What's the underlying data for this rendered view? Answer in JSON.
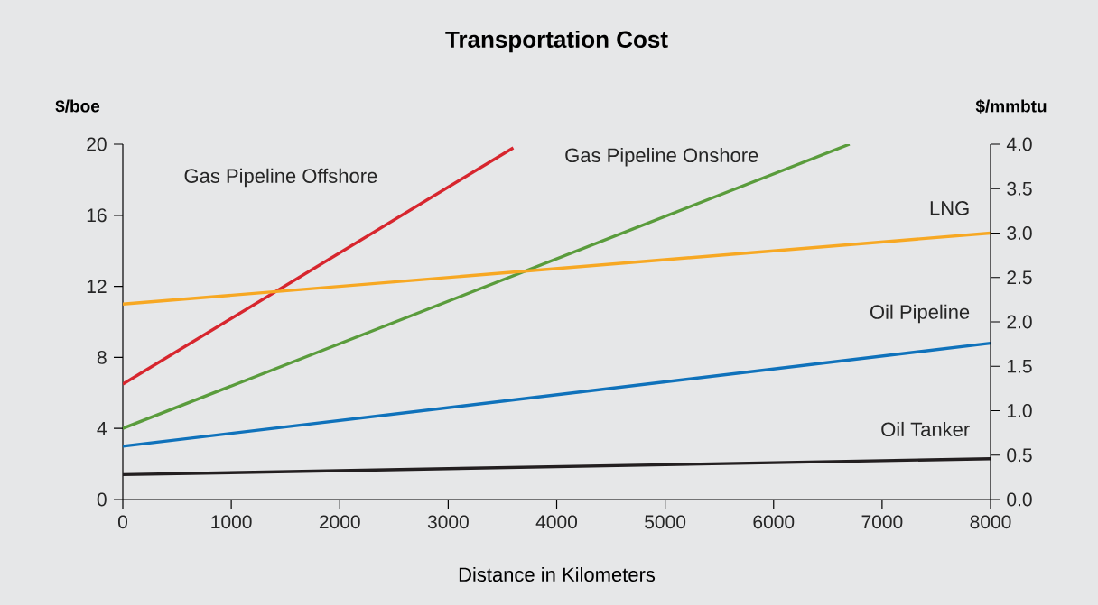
{
  "chart_data": {
    "type": "line",
    "title": "Transportation Cost",
    "xlabel": "Distance in Kilometers",
    "ylabel": "$/boe",
    "y2label": "$/mmbtu",
    "xlim": [
      0,
      8000
    ],
    "xticks": [
      0,
      1000,
      2000,
      3000,
      4000,
      5000,
      6000,
      7000,
      8000
    ],
    "ylim": [
      0,
      20
    ],
    "yticks": [
      0,
      4,
      8,
      12,
      16,
      20
    ],
    "y2lim": [
      0,
      4
    ],
    "y2ticks": [
      {
        "value": 0,
        "label": "0.0"
      },
      {
        "value": 0.5,
        "label": "0.5"
      },
      {
        "value": 1,
        "label": "1.0"
      },
      {
        "value": 1.5,
        "label": "1.5"
      },
      {
        "value": 2,
        "label": "2.0"
      },
      {
        "value": 2.5,
        "label": "2.5"
      },
      {
        "value": 3,
        "label": "3.0"
      },
      {
        "value": 3.5,
        "label": "3.5"
      },
      {
        "value": 4,
        "label": "4.0"
      }
    ],
    "marker": "none",
    "legend": false,
    "series": [
      {
        "name": "Gas Pipeline Offshore",
        "color": "#d7262e",
        "x": [
          0,
          3600
        ],
        "values": [
          6.5,
          19.8
        ]
      },
      {
        "name": "Gas Pipeline Onshore",
        "color": "#5a9c3c",
        "x": [
          0,
          6700
        ],
        "values": [
          4.0,
          20.0
        ]
      },
      {
        "name": "LNG",
        "color": "#f7a823",
        "x": [
          0,
          8000
        ],
        "values": [
          11.0,
          15.0
        ]
      },
      {
        "name": "Oil Pipeline",
        "color": "#0f72bb",
        "x": [
          0,
          8000
        ],
        "values": [
          3.0,
          8.8
        ]
      },
      {
        "name": "Oil Tanker",
        "color": "#231f20",
        "x": [
          0,
          8000
        ],
        "values": [
          1.4,
          2.3
        ]
      }
    ]
  }
}
